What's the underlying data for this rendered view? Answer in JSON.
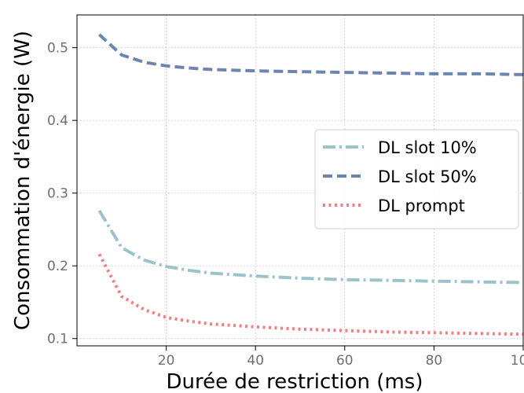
{
  "chart_data": {
    "type": "line",
    "title": "",
    "xlabel": "Durée de restriction (ms)",
    "ylabel": "Consommation d'énergie (W)",
    "xlim": [
      0,
      100
    ],
    "ylim": [
      0.09,
      0.545
    ],
    "xticks": [
      20,
      40,
      60,
      80,
      100
    ],
    "yticks": [
      0.1,
      0.2,
      0.3,
      0.4,
      0.5
    ],
    "xtick_labels": [
      "20",
      "40",
      "60",
      "80",
      "100"
    ],
    "ytick_labels": [
      "0.1",
      "0.2",
      "0.3",
      "0.4",
      "0.5"
    ],
    "grid": true,
    "legend_position": "center-right",
    "x": [
      5,
      10,
      15,
      20,
      25,
      30,
      40,
      50,
      60,
      70,
      80,
      90,
      100
    ],
    "series": [
      {
        "name": "DL slot 10%",
        "color": "#9cc3cc",
        "style": "dashdot",
        "values": [
          0.276,
          0.225,
          0.208,
          0.199,
          0.194,
          0.19,
          0.186,
          0.183,
          0.181,
          0.18,
          0.179,
          0.178,
          0.177
        ]
      },
      {
        "name": "DL slot 50%",
        "color": "#6b84b0",
        "style": "dashed",
        "values": [
          0.518,
          0.49,
          0.48,
          0.475,
          0.472,
          0.47,
          0.468,
          0.467,
          0.466,
          0.465,
          0.464,
          0.464,
          0.463
        ]
      },
      {
        "name": "DL prompt",
        "color": "#f47c82",
        "style": "dotted",
        "values": [
          0.216,
          0.158,
          0.14,
          0.129,
          0.124,
          0.12,
          0.116,
          0.113,
          0.111,
          0.109,
          0.108,
          0.107,
          0.106
        ]
      }
    ]
  }
}
